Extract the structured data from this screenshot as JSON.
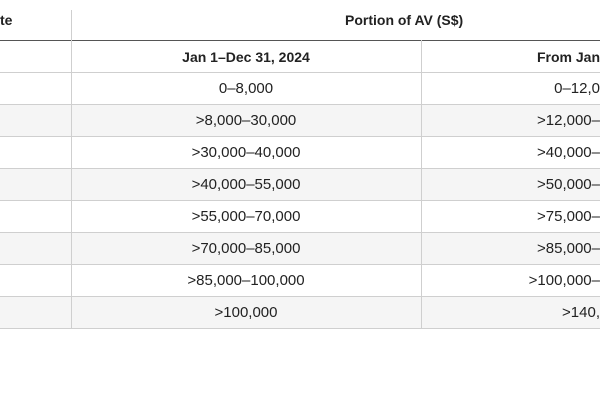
{
  "header": {
    "first": "te",
    "group": "Portion of AV (S$)",
    "col2": "Jan 1–Dec 31, 2024",
    "col3": "From Jan"
  },
  "rows": [
    [
      "0–8,000",
      "0–12,0"
    ],
    [
      ">8,000–30,000",
      ">12,000–"
    ],
    [
      ">30,000–40,000",
      ">40,000–"
    ],
    [
      ">40,000–55,000",
      ">50,000–"
    ],
    [
      ">55,000–70,000",
      ">75,000–"
    ],
    [
      ">70,000–85,000",
      ">85,000–"
    ],
    [
      ">85,000–100,000",
      ">100,000–"
    ],
    [
      ">100,000",
      ">140,"
    ]
  ]
}
